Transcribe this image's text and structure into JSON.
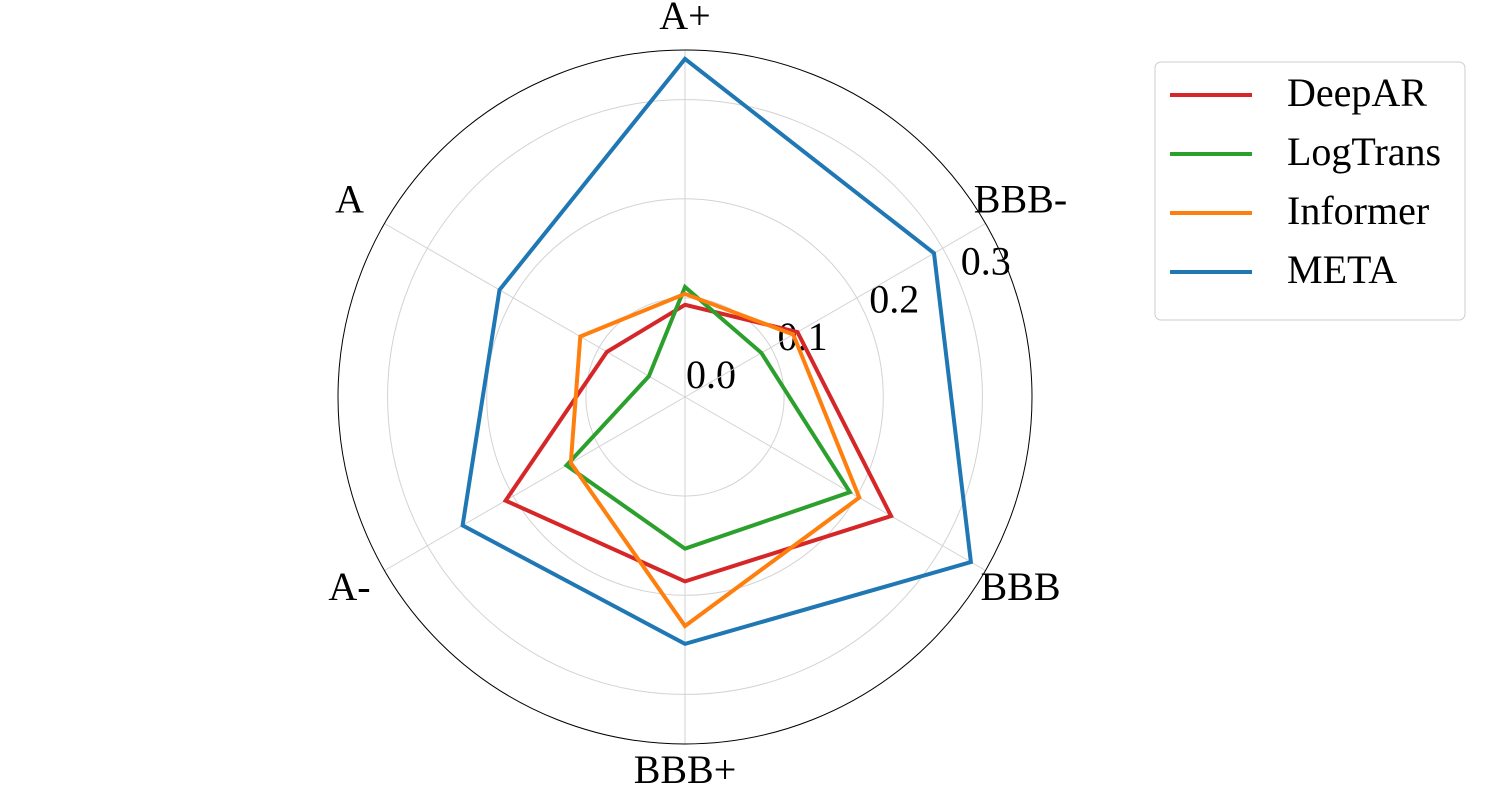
{
  "chart_data": {
    "type": "radar",
    "categories": [
      "A+",
      "A",
      "A-",
      "BBB+",
      "BBB",
      "BBB-"
    ],
    "series": [
      {
        "name": "DeepAR",
        "color": "#d62728",
        "values": [
          0.093,
          0.091,
          0.209,
          0.186,
          0.24,
          0.131
        ]
      },
      {
        "name": "LogTrans",
        "color": "#2ca02c",
        "values": [
          0.111,
          0.042,
          0.138,
          0.153,
          0.192,
          0.089
        ]
      },
      {
        "name": "Informer",
        "color": "#ff7f0e",
        "values": [
          0.104,
          0.122,
          0.133,
          0.231,
          0.203,
          0.126
        ]
      },
      {
        "name": "META",
        "color": "#1f77b4",
        "values": [
          0.341,
          0.216,
          0.259,
          0.249,
          0.333,
          0.29
        ]
      }
    ],
    "ylim": [
      0,
      0.35
    ],
    "yticks": [
      {
        "value": 0,
        "label": "0.0"
      },
      0.1,
      0.2,
      0.3
    ],
    "grid": true,
    "legend": "upper right"
  }
}
